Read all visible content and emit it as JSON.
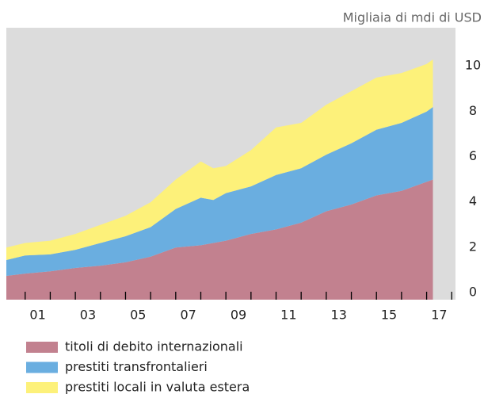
{
  "chart_data": {
    "type": "stacked-area",
    "unit_label": "Migliaia di mdi di USD",
    "x": [
      2000.25,
      2001,
      2002,
      2003,
      2004,
      2005,
      2006,
      2007,
      2008,
      2008.5,
      2009,
      2010,
      2011,
      2012,
      2013,
      2014,
      2015,
      2016,
      2017,
      2017.25
    ],
    "series": [
      {
        "name": "titoli di debito internazionali",
        "color": "#c2818f",
        "values": [
          1.05,
          1.15,
          1.25,
          1.4,
          1.5,
          1.65,
          1.9,
          2.3,
          2.4,
          2.5,
          2.6,
          2.9,
          3.1,
          3.4,
          3.9,
          4.2,
          4.6,
          4.8,
          5.2,
          5.3
        ]
      },
      {
        "name": "prestiti transfrontalieri",
        "color": "#6aaee0",
        "values": [
          0.7,
          0.8,
          0.75,
          0.8,
          1.0,
          1.15,
          1.3,
          1.7,
          2.1,
          1.9,
          2.1,
          2.1,
          2.4,
          2.4,
          2.5,
          2.7,
          2.9,
          3.0,
          3.1,
          3.2
        ]
      },
      {
        "name": "prestiti locali in valuta estera",
        "color": "#fdf17a",
        "values": [
          0.55,
          0.55,
          0.6,
          0.7,
          0.8,
          0.9,
          1.1,
          1.3,
          1.6,
          1.4,
          1.2,
          1.6,
          2.1,
          2.0,
          2.2,
          2.3,
          2.3,
          2.2,
          2.1,
          2.1
        ]
      }
    ],
    "xlim": [
      2000.25,
      2018.15
    ],
    "xticks": [
      {
        "value": 2001.5,
        "label": "01"
      },
      {
        "value": 2003.5,
        "label": "03"
      },
      {
        "value": 2005.5,
        "label": "05"
      },
      {
        "value": 2007.5,
        "label": "07"
      },
      {
        "value": 2009.5,
        "label": "09"
      },
      {
        "value": 2011.5,
        "label": "11"
      },
      {
        "value": 2013.5,
        "label": "13"
      },
      {
        "value": 2015.5,
        "label": "15"
      },
      {
        "value": 2017.5,
        "label": "17"
      }
    ],
    "xminorticks": [
      2001,
      2002,
      2003,
      2004,
      2005,
      2006,
      2007,
      2008,
      2009,
      2010,
      2011,
      2012,
      2013,
      2014,
      2015,
      2016,
      2017,
      2018
    ],
    "ylim": [
      0,
      12
    ],
    "yticks": [
      0,
      2,
      4,
      6,
      8,
      10
    ],
    "background": "#dcdcdc"
  }
}
